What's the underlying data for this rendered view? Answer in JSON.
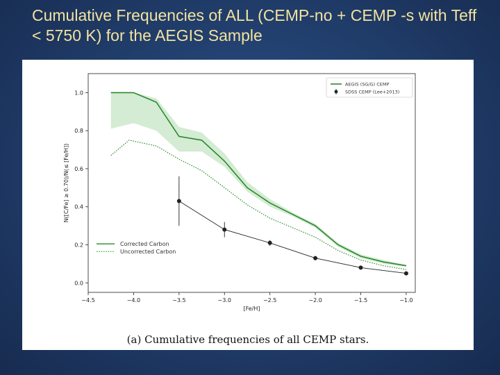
{
  "slide": {
    "title": "Cumulative Frequencies of ALL  (CEMP-no + CEMP -s with Teff < 5750 K) for the AEGIS Sample"
  },
  "figure": {
    "caption": "(a) Cumulative frequencies of all CEMP stars."
  },
  "colors": {
    "aegis": "#2a8a2a",
    "band": "#cde8cd",
    "sdss": "#222222",
    "background": "#22406f",
    "title": "#f3e3a0"
  },
  "chart_data": {
    "type": "line",
    "xlabel": "[Fe/H]",
    "ylabel": "N([C/Fe] ≥ 0.70)/N(≤ [Fe/H])",
    "xlim": [
      -4.5,
      -0.9
    ],
    "ylim": [
      -0.05,
      1.1
    ],
    "x_ticks": [
      -4.5,
      -4.0,
      -3.5,
      -3.0,
      -2.5,
      -2.0,
      -1.5,
      -1.0
    ],
    "x_tick_labels": [
      "−4.5",
      "−4.0",
      "−3.5",
      "−3.0",
      "−2.5",
      "−2.0",
      "−1.5",
      "−1.0"
    ],
    "y_ticks": [
      0.0,
      0.2,
      0.4,
      0.6,
      0.8,
      1.0
    ],
    "y_tick_labels": [
      "0.0",
      "0.2",
      "0.4",
      "0.6",
      "0.8",
      "1.0"
    ],
    "grid": false,
    "legend_top_right": [
      {
        "label": "AEGIS (SG/G) CEMP",
        "style": "line"
      },
      {
        "label": "SDSS CEMP (Lee+2013)",
        "style": "errorbar"
      }
    ],
    "legend_left": [
      {
        "label": "Corrected Carbon",
        "style": "solid"
      },
      {
        "label": "Uncorrected Carbon",
        "style": "dotted"
      }
    ],
    "series": [
      {
        "name": "AEGIS (SG/G) CEMP",
        "variant": "Corrected Carbon",
        "x": [
          -4.25,
          -4.0,
          -3.75,
          -3.5,
          -3.25,
          -3.0,
          -2.75,
          -2.5,
          -2.25,
          -2.0,
          -1.75,
          -1.5,
          -1.25,
          -1.0
        ],
        "y": [
          1.0,
          1.0,
          0.95,
          0.77,
          0.75,
          0.64,
          0.5,
          0.42,
          0.36,
          0.3,
          0.2,
          0.14,
          0.11,
          0.09
        ],
        "band_upper": [
          1.0,
          1.0,
          0.97,
          0.82,
          0.79,
          0.68,
          0.53,
          0.44,
          0.37,
          0.31,
          0.21,
          0.15,
          0.12,
          0.095
        ],
        "band_lower": [
          0.81,
          0.84,
          0.8,
          0.69,
          0.69,
          0.61,
          0.48,
          0.4,
          0.35,
          0.29,
          0.19,
          0.13,
          0.1,
          0.085
        ]
      },
      {
        "name": "AEGIS (SG/G) CEMP",
        "variant": "Uncorrected Carbon",
        "x": [
          -4.25,
          -4.05,
          -3.75,
          -3.5,
          -3.25,
          -3.0,
          -2.75,
          -2.5,
          -2.25,
          -2.0,
          -1.75,
          -1.5,
          -1.25,
          -1.0
        ],
        "y": [
          0.67,
          0.75,
          0.72,
          0.65,
          0.59,
          0.5,
          0.41,
          0.34,
          0.29,
          0.24,
          0.17,
          0.12,
          0.09,
          0.07
        ]
      },
      {
        "name": "SDSS CEMP (Lee+2013)",
        "x": [
          -3.5,
          -3.0,
          -2.5,
          -2.0,
          -1.5,
          -1.0
        ],
        "y": [
          0.43,
          0.28,
          0.21,
          0.13,
          0.08,
          0.05
        ],
        "yerr": [
          0.13,
          0.04,
          0.015,
          0.012,
          0.01,
          0.008
        ]
      }
    ]
  }
}
